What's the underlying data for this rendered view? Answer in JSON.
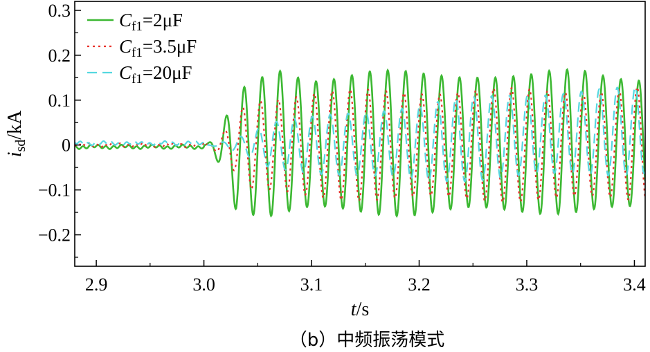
{
  "chart_data": {
    "type": "line",
    "caption": "（b）中频振荡模式",
    "xlabel": {
      "var": "t",
      "unit": "/s"
    },
    "ylabel": {
      "var": "i",
      "sub": "sd",
      "unit": "/kA"
    },
    "xlim": [
      2.88,
      3.41
    ],
    "ylim": [
      -0.27,
      0.32
    ],
    "xticks": [
      2.9,
      3.0,
      3.1,
      3.2,
      3.3,
      3.4
    ],
    "xtick_labels": [
      "2.9",
      "3.0",
      "3.1",
      "3.2",
      "3.3",
      "3.4"
    ],
    "yticks": [
      0.3,
      0.2,
      0.1,
      0,
      -0.1,
      -0.2
    ],
    "ytick_labels": [
      "0.3",
      "0.2",
      "0.1",
      "0",
      "−0.1",
      "−0.2"
    ],
    "grid": false,
    "legend_position": "top-left",
    "oscillation_onset": 3.0,
    "oscillation_frequency_hz": 60,
    "series": [
      {
        "name": {
          "var": "C",
          "sub": "f1",
          "value": "=2μF"
        },
        "color": "#3cb832",
        "style": "solid",
        "pre_level": -0.004,
        "growth_end": 3.03,
        "upper_envelope": [
          [
            3.03,
            0.11
          ],
          [
            3.05,
            0.14
          ],
          [
            3.07,
            0.165
          ],
          [
            3.1,
            0.15
          ],
          [
            3.15,
            0.16
          ],
          [
            3.2,
            0.155
          ],
          [
            3.25,
            0.16
          ],
          [
            3.3,
            0.15
          ],
          [
            3.35,
            0.165
          ],
          [
            3.41,
            0.15
          ]
        ],
        "lower_envelope": [
          [
            3.03,
            -0.14
          ],
          [
            3.06,
            -0.155
          ],
          [
            3.1,
            -0.145
          ],
          [
            3.2,
            -0.15
          ],
          [
            3.3,
            -0.145
          ],
          [
            3.41,
            -0.145
          ]
        ]
      },
      {
        "name": {
          "var": "C",
          "sub": "f1",
          "value": "=3.5μF"
        },
        "color": "#e8302a",
        "style": "dotted",
        "pre_level": 0.0,
        "growth_end": 3.04,
        "upper_envelope": [
          [
            3.04,
            0.1
          ],
          [
            3.1,
            0.115
          ],
          [
            3.2,
            0.12
          ],
          [
            3.3,
            0.12
          ],
          [
            3.41,
            0.125
          ]
        ],
        "lower_envelope": [
          [
            3.04,
            -0.1
          ],
          [
            3.1,
            -0.115
          ],
          [
            3.2,
            -0.12
          ],
          [
            3.3,
            -0.12
          ],
          [
            3.41,
            -0.12
          ]
        ]
      },
      {
        "name": {
          "var": "C",
          "sub": "f1",
          "value": "=20μF"
        },
        "color": "#55d8e0",
        "style": "dashed",
        "pre_level": 0.004,
        "growth_end": 3.06,
        "upper_envelope": [
          [
            3.06,
            0.05
          ],
          [
            3.1,
            0.06
          ],
          [
            3.2,
            0.09
          ],
          [
            3.3,
            0.115
          ],
          [
            3.41,
            0.125
          ]
        ],
        "lower_envelope": [
          [
            3.06,
            -0.05
          ],
          [
            3.1,
            -0.06
          ],
          [
            3.2,
            -0.08
          ],
          [
            3.3,
            -0.07
          ],
          [
            3.41,
            -0.06
          ]
        ]
      }
    ]
  }
}
